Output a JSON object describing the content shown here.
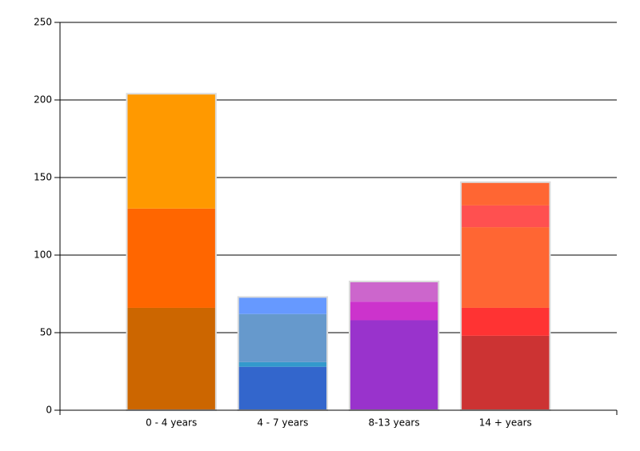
{
  "chart_data": {
    "type": "stacked-bar",
    "categories": [
      "0 - 4 years",
      "4 - 7 years",
      "8-13 years",
      "14 + years"
    ],
    "series": [
      {
        "colors": [
          "#cc6600",
          "#3366cc",
          "#9933cc",
          "#cc3333"
        ],
        "values": [
          66,
          28,
          58,
          48
        ]
      },
      {
        "colors": [
          "#ff6600",
          "#3399cc",
          "#cc33cc",
          "#ff3333"
        ],
        "values": [
          64,
          3,
          12,
          18
        ]
      },
      {
        "colors": [
          "#ff9900",
          "#6699cc",
          "#cc66cc",
          "#ff6633"
        ],
        "values": [
          74,
          31,
          13,
          52
        ]
      },
      {
        "colors": [
          null,
          "#6699ff",
          null,
          "#ff5050"
        ],
        "values": [
          null,
          11,
          null,
          14
        ]
      },
      {
        "colors": [
          null,
          null,
          null,
          "#ff6633"
        ],
        "values": [
          null,
          null,
          null,
          15
        ]
      }
    ],
    "ylim": [
      0,
      250
    ],
    "yticks": [
      0,
      50,
      100,
      150,
      200,
      250
    ],
    "grid": true
  }
}
